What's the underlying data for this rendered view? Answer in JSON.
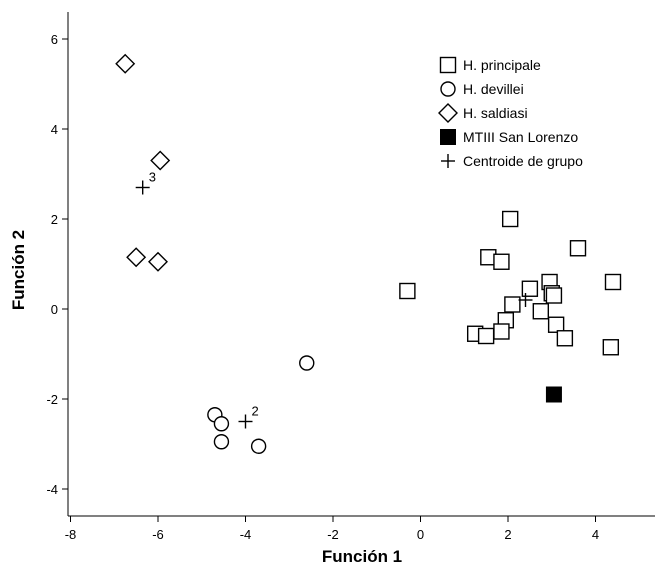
{
  "chart_data": {
    "type": "scatter",
    "xlabel": "Función 1",
    "ylabel": "Función 2",
    "xlim": [
      -8.3,
      5.5
    ],
    "ylim": [
      -4.6,
      6.5
    ],
    "xticks": [
      -8,
      -6,
      -4,
      -2,
      0,
      2,
      4
    ],
    "yticks": [
      -4,
      -2,
      0,
      2,
      4,
      6
    ],
    "grid": false,
    "legend_position": "top-right",
    "series": [
      {
        "name": "H. principale",
        "marker": "square",
        "points": [
          [
            -0.3,
            0.4
          ],
          [
            2.05,
            2.0
          ],
          [
            1.55,
            1.15
          ],
          [
            1.85,
            1.05
          ],
          [
            3.6,
            1.35
          ],
          [
            4.4,
            0.6
          ],
          [
            2.95,
            0.6
          ],
          [
            2.5,
            0.45
          ],
          [
            3.0,
            0.35
          ],
          [
            3.05,
            0.3
          ],
          [
            2.1,
            0.1
          ],
          [
            2.75,
            -0.05
          ],
          [
            1.95,
            -0.25
          ],
          [
            3.1,
            -0.35
          ],
          [
            1.25,
            -0.55
          ],
          [
            1.5,
            -0.6
          ],
          [
            1.85,
            -0.5
          ],
          [
            3.3,
            -0.65
          ],
          [
            4.35,
            -0.85
          ]
        ]
      },
      {
        "name": "H. devillei",
        "marker": "circle",
        "points": [
          [
            -2.6,
            -1.2
          ],
          [
            -4.7,
            -2.35
          ],
          [
            -4.55,
            -2.55
          ],
          [
            -4.55,
            -2.95
          ],
          [
            -3.7,
            -3.05
          ]
        ]
      },
      {
        "name": "H. saldiasi",
        "marker": "diamond",
        "points": [
          [
            -6.75,
            5.45
          ],
          [
            -5.95,
            3.3
          ],
          [
            -6.5,
            1.15
          ],
          [
            -6.0,
            1.05
          ]
        ]
      },
      {
        "name": "MTIII San Lorenzo",
        "marker": "filled-square",
        "points": [
          [
            3.05,
            -1.9
          ]
        ]
      },
      {
        "name": "Centroide de grupo",
        "marker": "plus",
        "points": [
          [
            2.4,
            0.2
          ],
          [
            -4.0,
            -2.5
          ],
          [
            -6.35,
            2.7
          ]
        ],
        "labels": [
          "",
          "2",
          "3"
        ]
      }
    ]
  }
}
